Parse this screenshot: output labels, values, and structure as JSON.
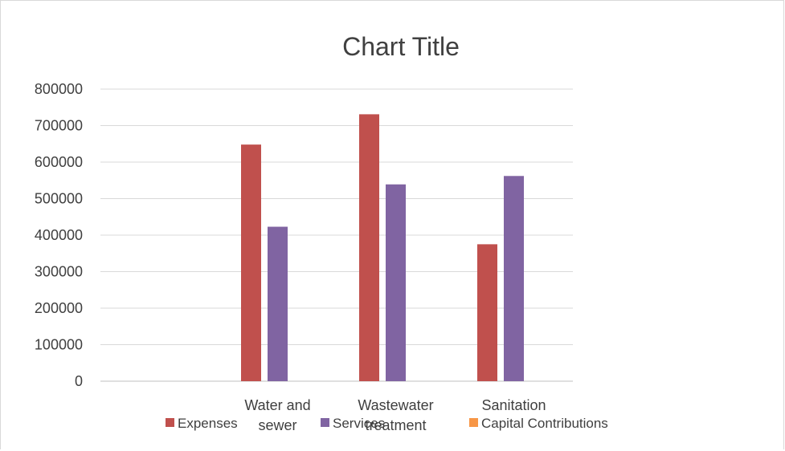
{
  "chart_data": {
    "type": "bar",
    "title": "Chart Title",
    "categories": [
      "",
      "Water and sewer",
      "Wastewater treatment",
      "Sanitation"
    ],
    "series": [
      {
        "name": "Expenses",
        "color": "#c0504d",
        "values": [
          0,
          648000,
          731000,
          375000
        ]
      },
      {
        "name": "Services",
        "color": "#8064a2",
        "values": [
          0,
          423000,
          539000,
          562000
        ]
      },
      {
        "name": "Capital Contributions",
        "color": "#f79646",
        "values": [
          0,
          0,
          0,
          0
        ]
      }
    ],
    "ylim": [
      0,
      800000
    ],
    "yticks": [
      "0",
      "100000",
      "200000",
      "300000",
      "400000",
      "500000",
      "600000",
      "700000",
      "800000"
    ],
    "grid": true,
    "legend": "bottom"
  }
}
